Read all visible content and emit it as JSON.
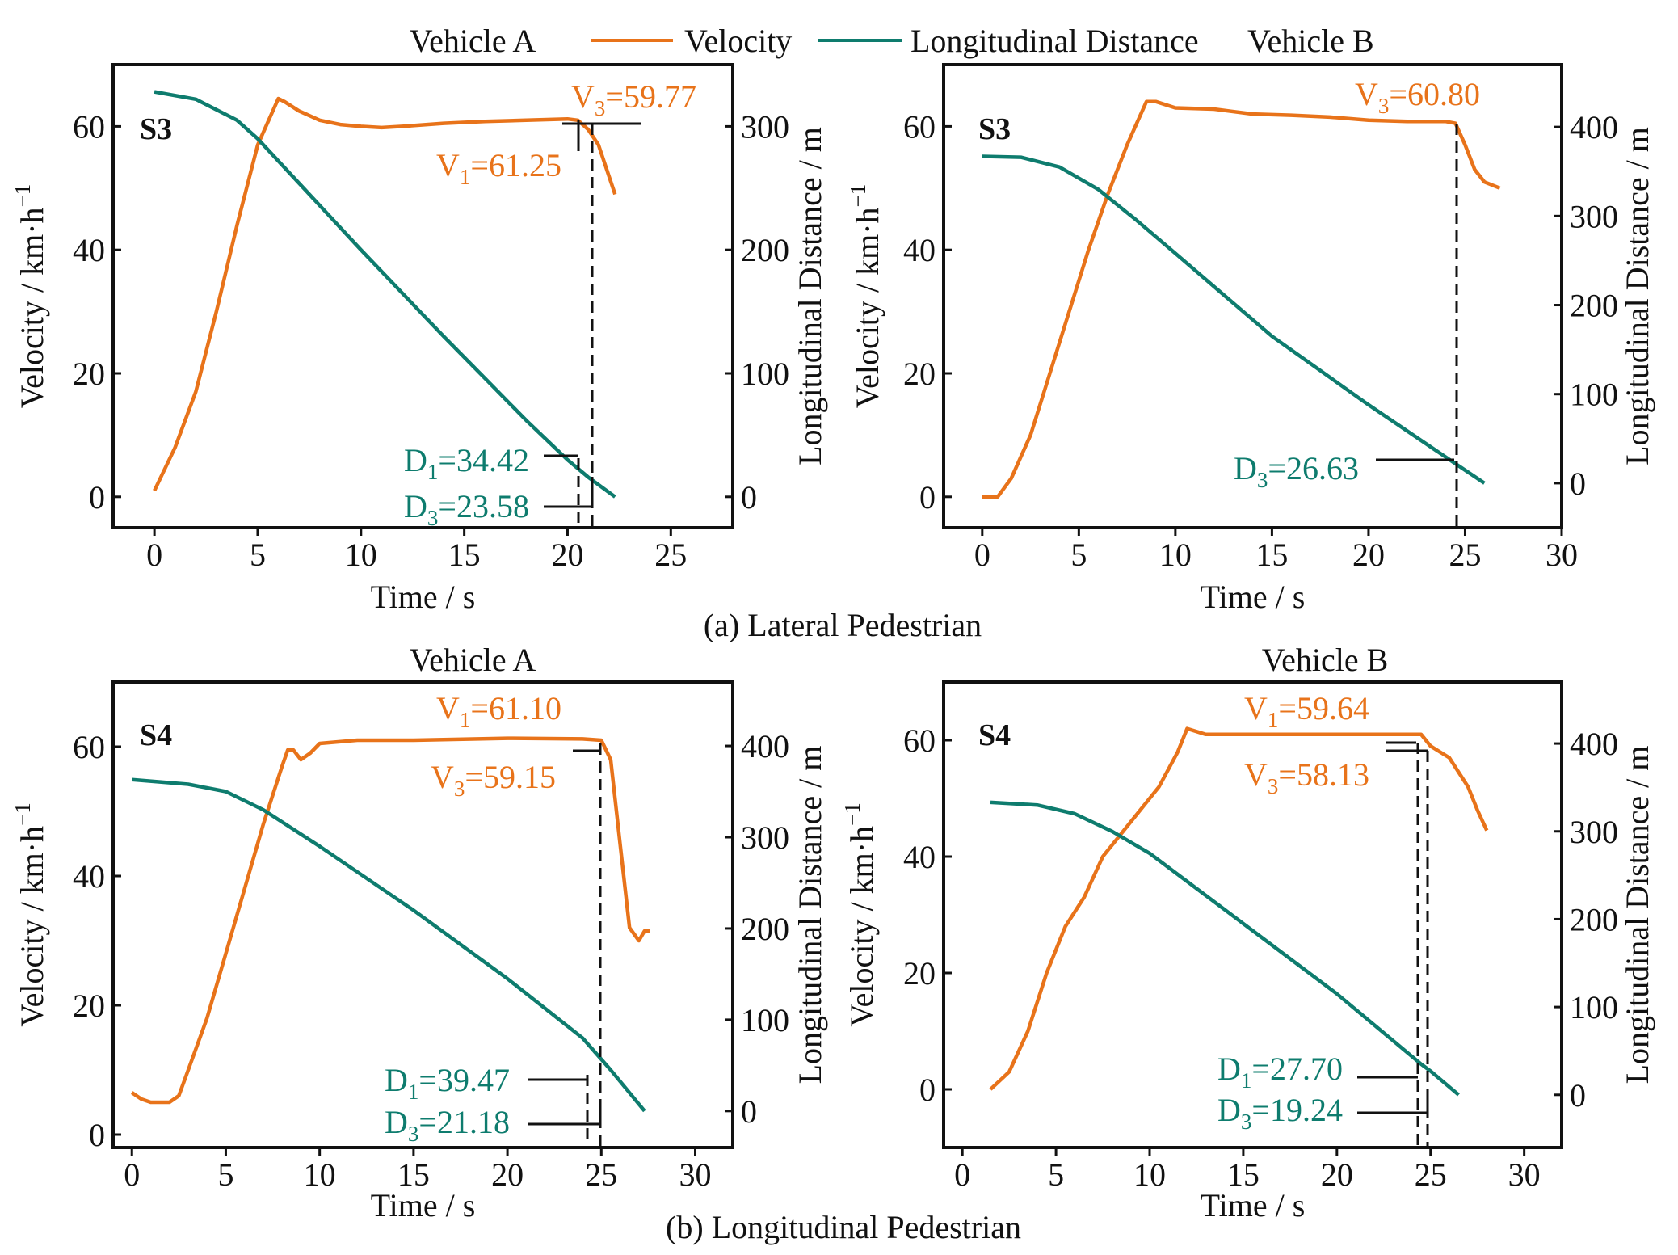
{
  "colors": {
    "velocity": "#E8731A",
    "distance": "#0E7C6E"
  },
  "legend": {
    "velocity": "Velocity",
    "distance": "Longitudinal Distance"
  },
  "captions": {
    "a": "(a) Lateral Pedestrian",
    "b": "(b)  Longitudinal Pedestrian"
  },
  "chart_data": [
    {
      "type": "line",
      "title": "Vehicle  A",
      "scenario": "S3",
      "xlabel": "Time / s",
      "ylabel": "Velocity / km·h",
      "ylabel_sup": "−1",
      "y2label": "Longitudinal Distance / m",
      "xlim": [
        -2,
        28
      ],
      "ylim": [
        -5,
        70
      ],
      "y2lim": [
        -25,
        350
      ],
      "xticks": [
        0,
        5,
        10,
        15,
        20,
        25
      ],
      "yticks": [
        0,
        20,
        40,
        60
      ],
      "y2ticks": [
        0,
        100,
        200,
        300
      ],
      "series": [
        {
          "name": "Velocity",
          "axis": "left",
          "points": [
            [
              0,
              1
            ],
            [
              1,
              8
            ],
            [
              2,
              17
            ],
            [
              3,
              30
            ],
            [
              4,
              44
            ],
            [
              5,
              57
            ],
            [
              6,
              64.5
            ],
            [
              6.3,
              64
            ],
            [
              7,
              62.5
            ],
            [
              8,
              61
            ],
            [
              9,
              60.3
            ],
            [
              10,
              60
            ],
            [
              11,
              59.8
            ],
            [
              12,
              60
            ],
            [
              14,
              60.5
            ],
            [
              16,
              60.8
            ],
            [
              18,
              61
            ],
            [
              20,
              61.2
            ],
            [
              20.5,
              61
            ],
            [
              21,
              59.5
            ],
            [
              21.5,
              57
            ],
            [
              22,
              52
            ],
            [
              22.3,
              49
            ]
          ]
        },
        {
          "name": "Longitudinal Distance",
          "axis": "right",
          "points": [
            [
              0,
              328
            ],
            [
              2,
              322
            ],
            [
              4,
              305
            ],
            [
              5,
              290
            ],
            [
              6,
              272
            ],
            [
              8,
              236
            ],
            [
              10,
              200
            ],
            [
              12,
              165
            ],
            [
              14,
              130
            ],
            [
              16,
              96
            ],
            [
              18,
              62
            ],
            [
              20,
              30
            ],
            [
              21,
              16
            ],
            [
              22.3,
              0
            ]
          ]
        }
      ],
      "annotations": [
        {
          "var": "V",
          "sub": "3",
          "val": "=59.77"
        },
        {
          "var": "V",
          "sub": "1",
          "val": "=61.25"
        },
        {
          "var": "D",
          "sub": "1",
          "val": "=34.42"
        },
        {
          "var": "D",
          "sub": "3",
          "val": "=23.58"
        }
      ]
    },
    {
      "type": "line",
      "title": "Vehicle B",
      "scenario": "S3",
      "xlabel": "Time / s",
      "ylabel": "Velocity / km·h",
      "ylabel_sup": "−1",
      "y2label": "Longitudinal Distance / m",
      "xlim": [
        -2,
        30
      ],
      "ylim": [
        -5,
        70
      ],
      "y2lim": [
        -50,
        470
      ],
      "xticks": [
        0,
        5,
        10,
        15,
        20,
        25,
        30
      ],
      "yticks": [
        0,
        20,
        40,
        60
      ],
      "y2ticks": [
        0,
        100,
        200,
        300,
        400
      ],
      "series": [
        {
          "name": "Velocity",
          "axis": "left",
          "points": [
            [
              0,
              0
            ],
            [
              0.8,
              0
            ],
            [
              1.5,
              3
            ],
            [
              2.5,
              10
            ],
            [
              3.5,
              20
            ],
            [
              4.5,
              30
            ],
            [
              5.5,
              40
            ],
            [
              6.5,
              49
            ],
            [
              7.5,
              57
            ],
            [
              8.5,
              64
            ],
            [
              9,
              64
            ],
            [
              10,
              63
            ],
            [
              12,
              62.8
            ],
            [
              14,
              62
            ],
            [
              16,
              61.8
            ],
            [
              18,
              61.5
            ],
            [
              20,
              61
            ],
            [
              22,
              60.8
            ],
            [
              24,
              60.8
            ],
            [
              24.5,
              60.5
            ],
            [
              25,
              57
            ],
            [
              25.5,
              53
            ],
            [
              26,
              51
            ],
            [
              26.8,
              50
            ]
          ]
        },
        {
          "name": "Longitudinal Distance",
          "axis": "right",
          "points": [
            [
              0,
              367
            ],
            [
              2,
              366
            ],
            [
              4,
              355
            ],
            [
              6,
              330
            ],
            [
              8,
              295
            ],
            [
              10,
              258
            ],
            [
              15,
              165
            ],
            [
              20,
              88
            ],
            [
              24.5,
              22
            ],
            [
              26,
              0
            ]
          ]
        }
      ],
      "annotations": [
        {
          "var": "V",
          "sub": "3",
          "val": "=60.80"
        },
        {
          "var": "D",
          "sub": "3",
          "val": "=26.63"
        }
      ]
    },
    {
      "type": "line",
      "title": "Vehicle  A",
      "scenario": "S4",
      "xlabel": "Time / s",
      "ylabel": "Velocity / km·h",
      "ylabel_sup": "−1",
      "y2label": "Longitudinal Distance / m",
      "xlim": [
        -1,
        32
      ],
      "ylim": [
        -2,
        70
      ],
      "y2lim": [
        -40,
        470
      ],
      "xticks": [
        0,
        5,
        10,
        15,
        20,
        25,
        30
      ],
      "yticks": [
        0,
        20,
        40,
        60
      ],
      "y2ticks": [
        0,
        100,
        200,
        300,
        400
      ],
      "series": [
        {
          "name": "Velocity",
          "axis": "left",
          "points": [
            [
              0,
              6.5
            ],
            [
              0.5,
              5.5
            ],
            [
              1,
              5
            ],
            [
              2,
              5
            ],
            [
              2.5,
              6
            ],
            [
              3,
              10
            ],
            [
              4,
              18
            ],
            [
              5,
              28
            ],
            [
              6,
              38
            ],
            [
              7,
              48
            ],
            [
              8,
              57
            ],
            [
              8.3,
              59.5
            ],
            [
              8.6,
              59.5
            ],
            [
              9,
              58
            ],
            [
              9.5,
              59
            ],
            [
              10,
              60.5
            ],
            [
              12,
              61
            ],
            [
              15,
              61
            ],
            [
              20,
              61.3
            ],
            [
              24,
              61.2
            ],
            [
              25,
              61
            ],
            [
              25.5,
              58
            ],
            [
              26,
              45
            ],
            [
              26.5,
              32
            ],
            [
              27,
              30
            ],
            [
              27.3,
              31.5
            ],
            [
              27.6,
              31.5
            ]
          ]
        },
        {
          "name": "Longitudinal Distance",
          "axis": "right",
          "points": [
            [
              0,
              363
            ],
            [
              3,
              358
            ],
            [
              5,
              350
            ],
            [
              7,
              330
            ],
            [
              10,
              290
            ],
            [
              15,
              220
            ],
            [
              20,
              145
            ],
            [
              24,
              80
            ],
            [
              25.5,
              45
            ],
            [
              27.3,
              0
            ]
          ]
        }
      ],
      "annotations": [
        {
          "var": "V",
          "sub": "1",
          "val": "=61.10"
        },
        {
          "var": "V",
          "sub": "3",
          "val": "=59.15"
        },
        {
          "var": "D",
          "sub": "1",
          "val": "=39.47"
        },
        {
          "var": "D",
          "sub": "3",
          "val": "=21.18"
        }
      ]
    },
    {
      "type": "line",
      "title": "Vehicle  B",
      "scenario": "S4",
      "xlabel": "Time / s",
      "ylabel": "Velocity / km·h",
      "ylabel_sup": "−1",
      "y2label": "Longitudinal Distance / m",
      "xlim": [
        -1,
        32
      ],
      "ylim": [
        -10,
        70
      ],
      "y2lim": [
        -60,
        470
      ],
      "xticks": [
        0,
        5,
        10,
        15,
        20,
        25,
        30
      ],
      "yticks": [
        0,
        20,
        40,
        60
      ],
      "y2ticks": [
        0,
        100,
        200,
        300,
        400
      ],
      "series": [
        {
          "name": "Velocity",
          "axis": "left",
          "points": [
            [
              1.5,
              0
            ],
            [
              2.5,
              3
            ],
            [
              3.5,
              10
            ],
            [
              4.5,
              20
            ],
            [
              5.5,
              28
            ],
            [
              6.5,
              33
            ],
            [
              7.5,
              40
            ],
            [
              9,
              46
            ],
            [
              10.5,
              52
            ],
            [
              11.5,
              58
            ],
            [
              12,
              62
            ],
            [
              13,
              61
            ],
            [
              15,
              61
            ],
            [
              20,
              61
            ],
            [
              24.5,
              61
            ],
            [
              25,
              59
            ],
            [
              26,
              57
            ],
            [
              27,
              52
            ],
            [
              27.5,
              48
            ],
            [
              28,
              44.5
            ]
          ]
        },
        {
          "name": "Longitudinal Distance",
          "axis": "right",
          "points": [
            [
              1.5,
              333
            ],
            [
              4,
              330
            ],
            [
              6,
              320
            ],
            [
              8,
              300
            ],
            [
              10,
              275
            ],
            [
              15,
              195
            ],
            [
              20,
              115
            ],
            [
              24.5,
              35
            ],
            [
              25,
              27
            ],
            [
              26.5,
              0
            ]
          ]
        }
      ],
      "annotations": [
        {
          "var": "V",
          "sub": "1",
          "val": "=59.64"
        },
        {
          "var": "V",
          "sub": "3",
          "val": "=58.13"
        },
        {
          "var": "D",
          "sub": "1",
          "val": "=27.70"
        },
        {
          "var": "D",
          "sub": "3",
          "val": "=19.24"
        }
      ]
    }
  ]
}
